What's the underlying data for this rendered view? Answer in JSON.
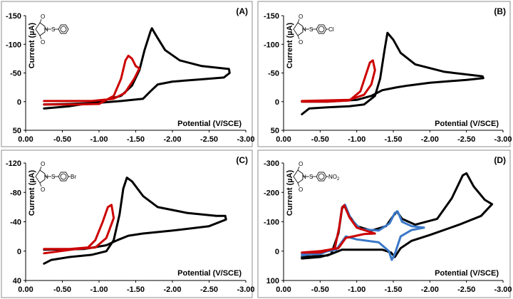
{
  "chart_data": [
    {
      "type": "line",
      "panel_label": "(A)",
      "ylabel": "Current (µA)",
      "xlabel": "Potential (V/SCE)",
      "x_ticks": [
        "0.00",
        "-0.50",
        "-1.00",
        "-1.50",
        "-2.00",
        "-2.50",
        "-3.00"
      ],
      "y_ticks": [
        "-150",
        "-100",
        "-50",
        "0",
        "50"
      ],
      "xlim": [
        0,
        -3
      ],
      "ylim": [
        50,
        -150
      ],
      "grid": false,
      "legend": "none",
      "structure_label": "",
      "series": [
        {
          "color": "#000000",
          "points": [
            [
              -0.25,
              12
            ],
            [
              -0.6,
              8
            ],
            [
              -1.0,
              0
            ],
            [
              -1.3,
              -10
            ],
            [
              -1.45,
              -28
            ],
            [
              -1.55,
              -55
            ],
            [
              -1.62,
              -90
            ],
            [
              -1.7,
              -122
            ],
            [
              -1.72,
              -128
            ],
            [
              -1.78,
              -115
            ],
            [
              -1.9,
              -90
            ],
            [
              -2.1,
              -72
            ],
            [
              -2.4,
              -62
            ],
            [
              -2.7,
              -58
            ],
            [
              -2.77,
              -57
            ],
            [
              -2.78,
              -50
            ],
            [
              -2.7,
              -42
            ],
            [
              -2.4,
              -39
            ],
            [
              -2.0,
              -35
            ],
            [
              -1.8,
              -30
            ],
            [
              -1.7,
              -18
            ],
            [
              -1.6,
              -5
            ],
            [
              -1.3,
              -1
            ],
            [
              -1.0,
              2
            ],
            [
              -0.6,
              4
            ],
            [
              -0.25,
              5
            ]
          ]
        },
        {
          "color": "#cc0000",
          "points": [
            [
              -0.25,
              5
            ],
            [
              -0.7,
              5
            ],
            [
              -1.0,
              4
            ],
            [
              -1.2,
              -10
            ],
            [
              -1.3,
              -40
            ],
            [
              -1.36,
              -72
            ],
            [
              -1.4,
              -80
            ],
            [
              -1.45,
              -75
            ],
            [
              -1.5,
              -62
            ],
            [
              -1.55,
              -58
            ],
            [
              -1.48,
              -40
            ],
            [
              -1.35,
              -15
            ],
            [
              -1.2,
              -5
            ],
            [
              -0.9,
              -1
            ],
            [
              -0.25,
              -1
            ]
          ]
        }
      ]
    },
    {
      "type": "line",
      "panel_label": "(B)",
      "ylabel": "Current (µA)",
      "xlabel": "Potential (V/SCE)",
      "x_ticks": [
        "0.00",
        "-0.50",
        "-1.00",
        "-1.50",
        "-2.00",
        "-2.50",
        "-3.00"
      ],
      "y_ticks": [
        "-150",
        "-100",
        "-50",
        "0",
        "50"
      ],
      "xlim": [
        0,
        -3
      ],
      "ylim": [
        50,
        -150
      ],
      "grid": false,
      "legend": "none",
      "structure_label": "Cl",
      "series": [
        {
          "color": "#000000",
          "points": [
            [
              -0.25,
              22
            ],
            [
              -0.35,
              12
            ],
            [
              -0.6,
              10
            ],
            [
              -0.9,
              8
            ],
            [
              -1.1,
              5
            ],
            [
              -1.25,
              -10
            ],
            [
              -1.32,
              -40
            ],
            [
              -1.38,
              -90
            ],
            [
              -1.42,
              -120
            ],
            [
              -1.5,
              -108
            ],
            [
              -1.6,
              -85
            ],
            [
              -1.8,
              -65
            ],
            [
              -2.2,
              -52
            ],
            [
              -2.6,
              -46
            ],
            [
              -2.72,
              -44
            ],
            [
              -2.73,
              -41
            ],
            [
              -2.5,
              -38
            ],
            [
              -2.0,
              -33
            ],
            [
              -1.7,
              -28
            ],
            [
              -1.55,
              -25
            ],
            [
              -1.35,
              -20
            ],
            [
              -1.2,
              -10
            ],
            [
              -1.0,
              -3
            ],
            [
              -0.6,
              0
            ],
            [
              -0.25,
              0
            ]
          ]
        },
        {
          "color": "#cc0000",
          "points": [
            [
              -0.25,
              0
            ],
            [
              -0.6,
              0
            ],
            [
              -0.9,
              -2
            ],
            [
              -1.05,
              -18
            ],
            [
              -1.12,
              -45
            ],
            [
              -1.18,
              -68
            ],
            [
              -1.22,
              -72
            ],
            [
              -1.25,
              -55
            ],
            [
              -1.2,
              -30
            ],
            [
              -1.1,
              -12
            ],
            [
              -0.9,
              -3
            ],
            [
              -0.25,
              -1
            ]
          ]
        }
      ]
    },
    {
      "type": "line",
      "panel_label": "(C)",
      "ylabel": "Current (µA)",
      "xlabel": "Potential (V/SCE)",
      "x_ticks": [
        "0.00",
        "-0.50",
        "-1.00",
        "-1.50",
        "-2.00",
        "-2.50",
        "-3.00"
      ],
      "y_ticks": [
        "-120",
        "-80",
        "-40",
        "0",
        "40"
      ],
      "xlim": [
        0,
        -3
      ],
      "ylim": [
        40,
        -120
      ],
      "grid": false,
      "legend": "none",
      "structure_label": "Br",
      "series": [
        {
          "color": "#000000",
          "points": [
            [
              -0.25,
              17
            ],
            [
              -0.35,
              12
            ],
            [
              -0.6,
              8
            ],
            [
              -0.9,
              5
            ],
            [
              -1.1,
              0
            ],
            [
              -1.2,
              -15
            ],
            [
              -1.28,
              -50
            ],
            [
              -1.33,
              -85
            ],
            [
              -1.38,
              -100
            ],
            [
              -1.45,
              -95
            ],
            [
              -1.6,
              -75
            ],
            [
              -1.8,
              -60
            ],
            [
              -2.2,
              -52
            ],
            [
              -2.6,
              -48
            ],
            [
              -2.72,
              -48
            ],
            [
              -2.73,
              -43
            ],
            [
              -2.5,
              -34
            ],
            [
              -2.0,
              -28
            ],
            [
              -1.6,
              -24
            ],
            [
              -1.4,
              -21
            ],
            [
              -1.25,
              -15
            ],
            [
              -1.1,
              -8
            ],
            [
              -0.8,
              -3
            ],
            [
              -0.25,
              -2
            ]
          ]
        },
        {
          "color": "#cc0000",
          "points": [
            [
              -0.25,
              -3
            ],
            [
              -0.6,
              -3
            ],
            [
              -0.85,
              -5
            ],
            [
              -0.95,
              -15
            ],
            [
              -1.05,
              -40
            ],
            [
              -1.12,
              -60
            ],
            [
              -1.17,
              -63
            ],
            [
              -1.2,
              -45
            ],
            [
              -1.1,
              -18
            ],
            [
              -0.95,
              -5
            ],
            [
              -0.7,
              -3
            ],
            [
              -0.25,
              3
            ]
          ]
        }
      ]
    },
    {
      "type": "line",
      "panel_label": "(D)",
      "ylabel": "Current (µA)",
      "xlabel": "Potential (V/SCE)",
      "x_ticks": [
        "0.00",
        "-0.50",
        "-1.00",
        "-1.50",
        "-2.00",
        "-2.50",
        "-3.00"
      ],
      "y_ticks": [
        "-300",
        "-200",
        "-100",
        "0",
        "100"
      ],
      "xlim": [
        0,
        -3
      ],
      "ylim": [
        100,
        -300
      ],
      "grid": false,
      "legend": "none",
      "structure_label": "NO",
      "structure_label_sub": "2",
      "series": [
        {
          "color": "#000000",
          "points": [
            [
              -0.25,
              25
            ],
            [
              -0.5,
              20
            ],
            [
              -0.65,
              10
            ],
            [
              -0.75,
              -60
            ],
            [
              -0.8,
              -145
            ],
            [
              -0.83,
              -155
            ],
            [
              -0.9,
              -120
            ],
            [
              -1.0,
              -85
            ],
            [
              -1.2,
              -70
            ],
            [
              -1.4,
              -85
            ],
            [
              -1.5,
              -120
            ],
            [
              -1.55,
              -135
            ],
            [
              -1.62,
              -110
            ],
            [
              -1.8,
              -90
            ],
            [
              -2.1,
              -110
            ],
            [
              -2.3,
              -180
            ],
            [
              -2.45,
              -258
            ],
            [
              -2.5,
              -265
            ],
            [
              -2.6,
              -220
            ],
            [
              -2.75,
              -175
            ],
            [
              -2.85,
              -160
            ],
            [
              -2.7,
              -120
            ],
            [
              -2.4,
              -90
            ],
            [
              -2.0,
              -55
            ],
            [
              -1.75,
              -35
            ],
            [
              -1.6,
              -10
            ],
            [
              -1.52,
              20
            ],
            [
              -1.47,
              5
            ],
            [
              -1.35,
              -5
            ],
            [
              -1.0,
              -5
            ],
            [
              -0.8,
              -5
            ],
            [
              -0.6,
              15
            ],
            [
              -0.25,
              20
            ]
          ]
        },
        {
          "color": "#3a78c8",
          "points": [
            [
              -0.25,
              10
            ],
            [
              -0.5,
              10
            ],
            [
              -0.7,
              -10
            ],
            [
              -0.76,
              -80
            ],
            [
              -0.8,
              -150
            ],
            [
              -0.84,
              -158
            ],
            [
              -0.92,
              -110
            ],
            [
              -1.05,
              -75
            ],
            [
              -1.3,
              -70
            ],
            [
              -1.45,
              -95
            ],
            [
              -1.52,
              -130
            ],
            [
              -1.56,
              -135
            ],
            [
              -1.62,
              -100
            ],
            [
              -1.75,
              -85
            ],
            [
              -1.92,
              -80
            ],
            [
              -1.75,
              -72
            ],
            [
              -1.6,
              -50
            ],
            [
              -1.52,
              10
            ],
            [
              -1.48,
              30
            ],
            [
              -1.44,
              0
            ],
            [
              -1.3,
              -30
            ],
            [
              -1.0,
              -40
            ],
            [
              -0.85,
              -50
            ],
            [
              -0.72,
              -5
            ],
            [
              -0.5,
              5
            ],
            [
              -0.25,
              15
            ]
          ]
        },
        {
          "color": "#cc0000",
          "points": [
            [
              -0.25,
              5
            ],
            [
              -0.5,
              5
            ],
            [
              -0.7,
              -10
            ],
            [
              -0.76,
              -80
            ],
            [
              -0.8,
              -148
            ],
            [
              -0.83,
              -156
            ],
            [
              -0.9,
              -115
            ],
            [
              -1.0,
              -80
            ],
            [
              -1.25,
              -60
            ],
            [
              -1.1,
              -58
            ],
            [
              -0.95,
              -50
            ],
            [
              -0.85,
              -45
            ],
            [
              -0.75,
              -10
            ],
            [
              -0.5,
              0
            ],
            [
              -0.25,
              5
            ]
          ]
        }
      ]
    }
  ]
}
